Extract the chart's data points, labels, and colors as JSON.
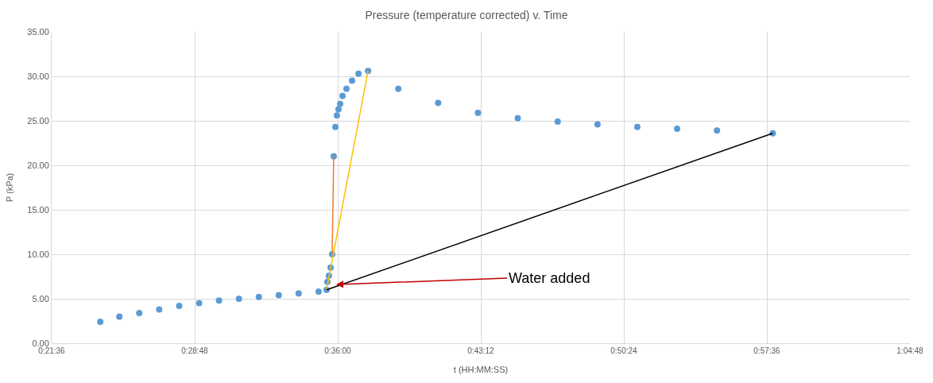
{
  "chart_data": {
    "type": "scatter",
    "title": "Pressure (temperature corrected) v. Time",
    "xlabel": "t (HH:MM:SS)",
    "ylabel": "P (kPa)",
    "series": [
      {
        "color": "#5b9bd5",
        "marker": "circle",
        "x": [
          0.4008,
          0.4168,
          0.4335,
          0.4502,
          0.467,
          0.4837,
          0.5004,
          0.5171,
          0.5338,
          0.5505,
          0.5672,
          0.5839,
          0.5906,
          0.5913,
          0.5926,
          0.594,
          0.5953,
          0.5966,
          0.598,
          0.5993,
          0.6006,
          0.602,
          0.604,
          0.6073,
          0.612,
          0.6174,
          0.6254,
          0.6508,
          0.6842,
          0.7176,
          0.751,
          0.7845,
          0.8179,
          0.8513,
          0.8847,
          0.9181,
          0.9649
        ],
        "values": [
          2.4,
          3.0,
          3.4,
          3.8,
          4.2,
          4.5,
          4.8,
          5.0,
          5.2,
          5.4,
          5.6,
          5.8,
          6.0,
          6.9,
          7.6,
          8.5,
          10.0,
          21.0,
          24.3,
          25.6,
          26.3,
          26.9,
          27.8,
          28.6,
          29.5,
          30.3,
          30.6,
          28.6,
          27.0,
          25.9,
          25.3,
          24.9,
          24.6,
          24.3,
          24.1,
          23.9,
          23.6
        ]
      },
      {
        "type": "line",
        "color": "#ed7d31",
        "marker": "none",
        "x": [
          0.5953,
          0.5966
        ],
        "values": [
          10.0,
          21.0
        ]
      },
      {
        "type": "line",
        "color": "#ffc000",
        "marker": "none",
        "x": [
          0.5906,
          0.6254
        ],
        "values": [
          6.0,
          30.6
        ]
      },
      {
        "type": "line",
        "color": "#000000",
        "marker": "none",
        "x": [
          0.5906,
          0.9649
        ],
        "values": [
          6.0,
          23.6
        ]
      }
    ],
    "xlim": [
      0.36,
      1.08
    ],
    "xticks": [
      {
        "value": 0.36,
        "label": "0:21:36"
      },
      {
        "value": 0.48,
        "label": "0:28:48"
      },
      {
        "value": 0.6,
        "label": "0:36:00"
      },
      {
        "value": 0.72,
        "label": "0:43:12"
      },
      {
        "value": 0.84,
        "label": "0:50:24"
      },
      {
        "value": 0.96,
        "label": "0:57:36"
      },
      {
        "value": 1.08,
        "label": "1:04:48"
      }
    ],
    "ylim": [
      0,
      35
    ],
    "yticks": [
      {
        "value": 0,
        "label": "0.00"
      },
      {
        "value": 5,
        "label": "5.00"
      },
      {
        "value": 10,
        "label": "10.00"
      },
      {
        "value": 15,
        "label": "15.00"
      },
      {
        "value": 20,
        "label": "20.00"
      },
      {
        "value": 25,
        "label": "25.00"
      },
      {
        "value": 30,
        "label": "30.00"
      },
      {
        "value": 35,
        "label": "35.00"
      }
    ],
    "annotations": [
      {
        "text": "Water added",
        "x": 0.5987,
        "y": 6.6
      }
    ],
    "grid": true
  }
}
